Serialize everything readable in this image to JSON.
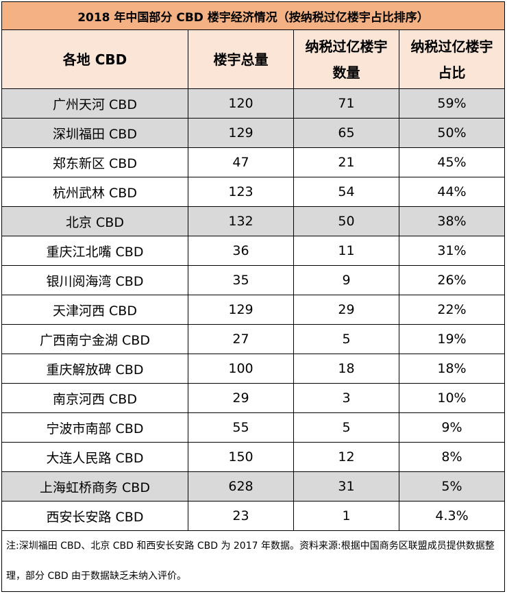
{
  "chart_data": {
    "type": "table",
    "title": "2018 年中国部分 CBD 楼宇经济情况（按纳税过亿楼宇占比排序）",
    "columns": [
      "各地 CBD",
      "楼宇总量",
      "纳税过亿楼宇数量",
      "纳税过亿楼宇占比"
    ],
    "highlight_color": "#d9d9d9",
    "rows": [
      {
        "name": "广州天河 CBD",
        "total": 120,
        "over_100m": 71,
        "share": "59%",
        "highlight": true
      },
      {
        "name": "深圳福田 CBD",
        "total": 129,
        "over_100m": 65,
        "share": "50%",
        "highlight": true
      },
      {
        "name": "郑东新区 CBD",
        "total": 47,
        "over_100m": 21,
        "share": "45%",
        "highlight": false
      },
      {
        "name": "杭州武林 CBD",
        "total": 123,
        "over_100m": 54,
        "share": "44%",
        "highlight": false
      },
      {
        "name": "北京 CBD",
        "total": 132,
        "over_100m": 50,
        "share": "38%",
        "highlight": true
      },
      {
        "name": "重庆江北嘴 CBD",
        "total": 36,
        "over_100m": 11,
        "share": "31%",
        "highlight": false
      },
      {
        "name": "银川阅海湾 CBD",
        "total": 35,
        "over_100m": 9,
        "share": "26%",
        "highlight": false
      },
      {
        "name": "天津河西 CBD",
        "total": 129,
        "over_100m": 29,
        "share": "22%",
        "highlight": false
      },
      {
        "name": "广西南宁金湖 CBD",
        "total": 27,
        "over_100m": 5,
        "share": "19%",
        "highlight": false
      },
      {
        "name": "重庆解放碑 CBD",
        "total": 100,
        "over_100m": 18,
        "share": "18%",
        "highlight": false
      },
      {
        "name": "南京河西 CBD",
        "total": 29,
        "over_100m": 3,
        "share": "10%",
        "highlight": false
      },
      {
        "name": "宁波市南部 CBD",
        "total": 55,
        "over_100m": 5,
        "share": "9%",
        "highlight": false
      },
      {
        "name": "大连人民路 CBD",
        "total": 150,
        "over_100m": 12,
        "share": "8%",
        "highlight": false
      },
      {
        "name": "上海虹桥商务 CBD",
        "total": 628,
        "over_100m": 31,
        "share": "5%",
        "highlight": true
      },
      {
        "name": "西安长安路 CBD",
        "total": 23,
        "over_100m": 1,
        "share": "4.3%",
        "highlight": false
      }
    ],
    "note": "注:深圳福田 CBD、北京 CBD 和西安长安路 CBD 为 2017 年数据。资料来源:根据中国商务区联盟成员提供数据整理，部分 CBD 由于数据缺乏未纳入评价。"
  },
  "colors": {
    "title_bg": "#f4b183",
    "header_bg": "#fbe5d6",
    "highlight_bg": "#d9d9d9",
    "border": "#000000"
  },
  "header_lines": {
    "col1": [
      "各地 CBD"
    ],
    "col2": [
      "楼宇总量"
    ],
    "col3": [
      "纳税过亿楼宇",
      "数量"
    ],
    "col4": [
      "纳税过亿楼宇",
      "占比"
    ]
  }
}
